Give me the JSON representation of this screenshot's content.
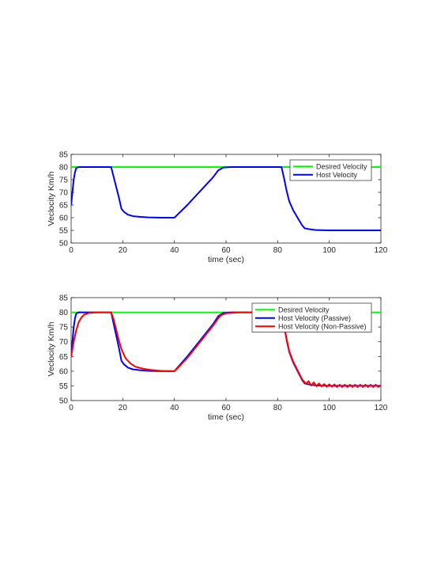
{
  "chart_data": [
    {
      "type": "line",
      "xlabel": "time (sec)",
      "ylabel": "Veclocity Km/h",
      "xlim": [
        0,
        120
      ],
      "ylim": [
        50,
        85
      ],
      "xticks": [
        0,
        20,
        40,
        60,
        80,
        100,
        120
      ],
      "yticks": [
        50,
        55,
        60,
        65,
        70,
        75,
        80,
        85
      ],
      "grid": false,
      "legend_position": "top-right",
      "series": [
        {
          "name": "Desired Velocity",
          "color": "#00ff00",
          "x": [
            0,
            120
          ],
          "y": [
            80,
            80
          ]
        },
        {
          "name": "Host Velocity",
          "color": "#0000ff",
          "x": [
            0,
            0.5,
            1,
            1.5,
            2,
            3,
            5,
            10,
            15.5,
            16.5,
            17.5,
            18.5,
            19.5,
            20.5,
            22,
            24,
            27,
            30,
            35,
            40,
            41,
            45,
            50,
            55,
            57,
            59,
            62,
            70,
            81.5,
            82.5,
            83.5,
            84.5,
            86,
            88,
            89.5,
            90.5,
            92,
            95,
            100,
            110,
            120
          ],
          "y": [
            65,
            70,
            75,
            78,
            79.6,
            80,
            80,
            80,
            80,
            76,
            72,
            68,
            63.5,
            62.3,
            61.2,
            60.6,
            60.3,
            60.1,
            60,
            60,
            61,
            65,
            70.5,
            76,
            78.7,
            79.8,
            80,
            80,
            80,
            75.5,
            70.5,
            66.5,
            63,
            59.5,
            57,
            55.8,
            55.5,
            55.1,
            55,
            55,
            55
          ]
        }
      ]
    },
    {
      "type": "line",
      "xlabel": "time (sec)",
      "ylabel": "Veclocity Km/h",
      "xlim": [
        0,
        120
      ],
      "ylim": [
        50,
        85
      ],
      "xticks": [
        0,
        20,
        40,
        60,
        80,
        100,
        120
      ],
      "yticks": [
        50,
        55,
        60,
        65,
        70,
        75,
        80,
        85
      ],
      "grid": false,
      "legend_position": "top-right",
      "series": [
        {
          "name": "Desired Velocity",
          "color": "#00ff00",
          "x": [
            0,
            120
          ],
          "y": [
            80,
            80
          ]
        },
        {
          "name": "Host Velocity (Passive)",
          "color": "#0000ff",
          "x": [
            0,
            0.5,
            1,
            1.5,
            2,
            3,
            5,
            10,
            15.5,
            16.5,
            17.5,
            18.5,
            19.5,
            20.5,
            22,
            24,
            27,
            30,
            35,
            40,
            41,
            45,
            50,
            55,
            57,
            59,
            62,
            70,
            81.5,
            82.5,
            83.5,
            84.5,
            86,
            88,
            89.5,
            90.5,
            92,
            95,
            100,
            110,
            120
          ],
          "y": [
            65,
            70,
            75,
            78,
            79.6,
            80,
            80,
            80,
            80,
            76,
            72,
            68,
            63.5,
            62.3,
            61.2,
            60.6,
            60.3,
            60.1,
            60,
            60,
            61,
            65,
            70.5,
            76,
            78.7,
            79.8,
            80,
            80,
            80,
            75.5,
            70.5,
            66.5,
            63,
            59.5,
            57,
            55.8,
            55.5,
            55.1,
            55,
            55,
            55
          ]
        },
        {
          "name": "Host Velocity (Non-Passive)",
          "color": "#ff0000",
          "x": [
            0,
            1,
            2,
            3,
            4,
            5,
            7,
            10,
            15.5,
            16.5,
            17.5,
            18.5,
            19.5,
            21,
            23,
            25,
            28,
            31,
            35,
            40,
            41,
            45,
            50,
            55,
            57,
            58,
            60,
            65,
            70,
            81.5,
            82.5,
            83.5,
            84.5,
            86,
            88,
            89.5,
            91,
            92,
            93,
            94,
            95,
            96,
            97,
            98,
            99,
            100,
            101,
            102,
            103,
            104,
            105,
            106,
            107,
            108,
            109,
            110,
            111,
            112,
            113,
            114,
            115,
            116,
            117,
            118,
            119,
            120
          ],
          "y": [
            65,
            70,
            74,
            76.8,
            78.3,
            79.2,
            79.8,
            80,
            80,
            77.5,
            74,
            70.5,
            67.5,
            64.5,
            62.6,
            61.5,
            60.8,
            60.4,
            60.1,
            60,
            60.8,
            64.5,
            70,
            75.5,
            78,
            79,
            79.7,
            80,
            80,
            80,
            75.5,
            70.8,
            66.8,
            63.3,
            59.8,
            57.2,
            55.7,
            56.6,
            55.1,
            56.2,
            54.9,
            55.8,
            54.8,
            55.6,
            54.7,
            55.5,
            54.7,
            55.5,
            54.6,
            55.4,
            54.6,
            55.4,
            54.6,
            55.4,
            54.6,
            55.4,
            54.6,
            55.4,
            54.6,
            55.4,
            54.6,
            55.4,
            54.6,
            55.4,
            54.6,
            55.2
          ]
        }
      ]
    }
  ]
}
